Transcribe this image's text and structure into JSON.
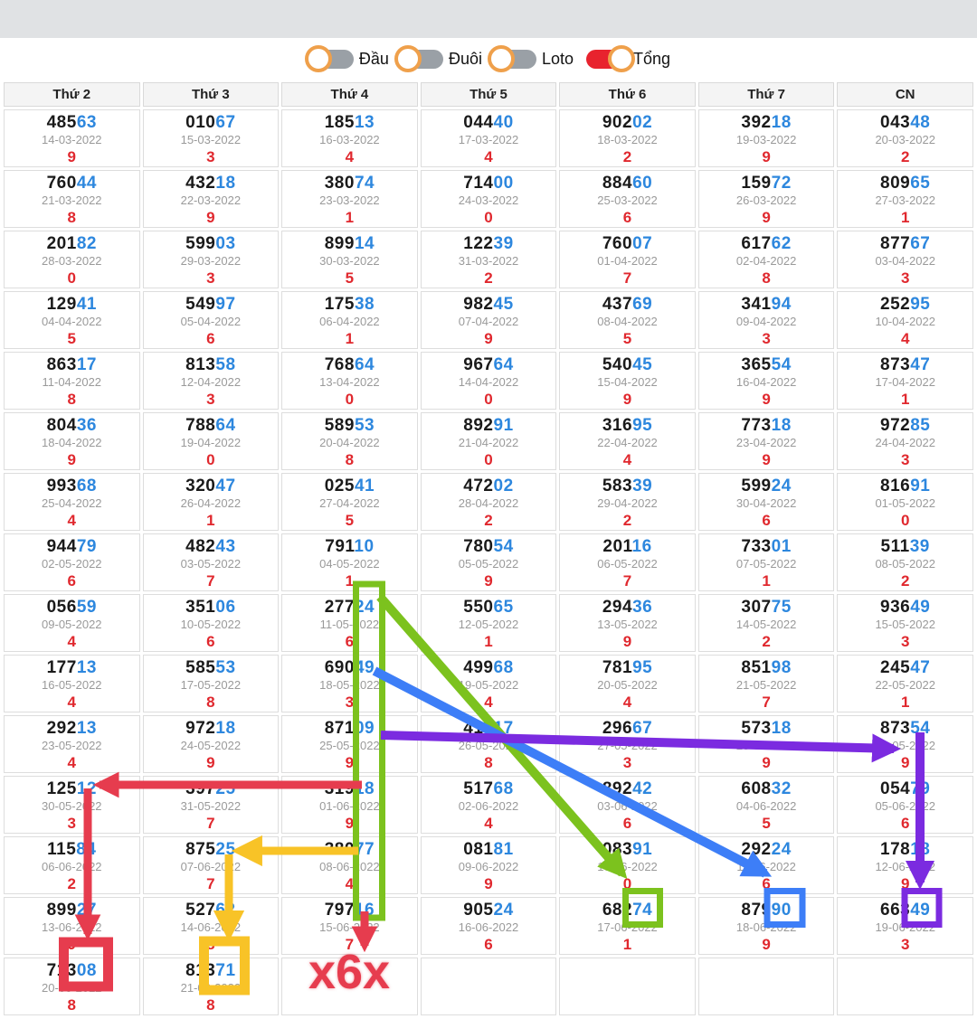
{
  "toggles": [
    {
      "label": "Đầu",
      "state": "off"
    },
    {
      "label": "Đuôi",
      "state": "off"
    },
    {
      "label": "Loto",
      "state": "off"
    },
    {
      "label": "Tổng",
      "state": "on"
    }
  ],
  "toggle_colors": {
    "track_off": "#9aa0a6",
    "track_on": "#e8232e",
    "knob_ring": "#efa04b"
  },
  "text_colors": {
    "number_head": "#1a1a1a",
    "number_tail": "#2d87de",
    "date": "#9a9a9a",
    "sum": "#e0282e"
  },
  "table": {
    "headers": [
      "Thứ 2",
      "Thứ 3",
      "Thứ 4",
      "Thứ 5",
      "Thứ 6",
      "Thứ 7",
      "CN"
    ],
    "rows": [
      [
        {
          "num": "48563",
          "date": "14-03-2022",
          "sum": "9"
        },
        {
          "num": "01067",
          "date": "15-03-2022",
          "sum": "3"
        },
        {
          "num": "18513",
          "date": "16-03-2022",
          "sum": "4"
        },
        {
          "num": "04440",
          "date": "17-03-2022",
          "sum": "4"
        },
        {
          "num": "90202",
          "date": "18-03-2022",
          "sum": "2"
        },
        {
          "num": "39218",
          "date": "19-03-2022",
          "sum": "9"
        },
        {
          "num": "04348",
          "date": "20-03-2022",
          "sum": "2"
        }
      ],
      [
        {
          "num": "76044",
          "date": "21-03-2022",
          "sum": "8"
        },
        {
          "num": "43218",
          "date": "22-03-2022",
          "sum": "9"
        },
        {
          "num": "38074",
          "date": "23-03-2022",
          "sum": "1"
        },
        {
          "num": "71400",
          "date": "24-03-2022",
          "sum": "0"
        },
        {
          "num": "88460",
          "date": "25-03-2022",
          "sum": "6"
        },
        {
          "num": "15972",
          "date": "26-03-2022",
          "sum": "9"
        },
        {
          "num": "80965",
          "date": "27-03-2022",
          "sum": "1"
        }
      ],
      [
        {
          "num": "20182",
          "date": "28-03-2022",
          "sum": "0"
        },
        {
          "num": "59903",
          "date": "29-03-2022",
          "sum": "3"
        },
        {
          "num": "89914",
          "date": "30-03-2022",
          "sum": "5"
        },
        {
          "num": "12239",
          "date": "31-03-2022",
          "sum": "2"
        },
        {
          "num": "76007",
          "date": "01-04-2022",
          "sum": "7"
        },
        {
          "num": "61762",
          "date": "02-04-2022",
          "sum": "8"
        },
        {
          "num": "87767",
          "date": "03-04-2022",
          "sum": "3"
        }
      ],
      [
        {
          "num": "12941",
          "date": "04-04-2022",
          "sum": "5"
        },
        {
          "num": "54997",
          "date": "05-04-2022",
          "sum": "6"
        },
        {
          "num": "17538",
          "date": "06-04-2022",
          "sum": "1"
        },
        {
          "num": "98245",
          "date": "07-04-2022",
          "sum": "9"
        },
        {
          "num": "43769",
          "date": "08-04-2022",
          "sum": "5"
        },
        {
          "num": "34194",
          "date": "09-04-2022",
          "sum": "3"
        },
        {
          "num": "25295",
          "date": "10-04-2022",
          "sum": "4"
        }
      ],
      [
        {
          "num": "86317",
          "date": "11-04-2022",
          "sum": "8"
        },
        {
          "num": "81358",
          "date": "12-04-2022",
          "sum": "3"
        },
        {
          "num": "76864",
          "date": "13-04-2022",
          "sum": "0"
        },
        {
          "num": "96764",
          "date": "14-04-2022",
          "sum": "0"
        },
        {
          "num": "54045",
          "date": "15-04-2022",
          "sum": "9"
        },
        {
          "num": "36554",
          "date": "16-04-2022",
          "sum": "9"
        },
        {
          "num": "87347",
          "date": "17-04-2022",
          "sum": "1"
        }
      ],
      [
        {
          "num": "80436",
          "date": "18-04-2022",
          "sum": "9"
        },
        {
          "num": "78864",
          "date": "19-04-2022",
          "sum": "0"
        },
        {
          "num": "58953",
          "date": "20-04-2022",
          "sum": "8"
        },
        {
          "num": "89291",
          "date": "21-04-2022",
          "sum": "0"
        },
        {
          "num": "31695",
          "date": "22-04-2022",
          "sum": "4"
        },
        {
          "num": "77318",
          "date": "23-04-2022",
          "sum": "9"
        },
        {
          "num": "97285",
          "date": "24-04-2022",
          "sum": "3"
        }
      ],
      [
        {
          "num": "99368",
          "date": "25-04-2022",
          "sum": "4"
        },
        {
          "num": "32047",
          "date": "26-04-2022",
          "sum": "1"
        },
        {
          "num": "02541",
          "date": "27-04-2022",
          "sum": "5"
        },
        {
          "num": "47202",
          "date": "28-04-2022",
          "sum": "2"
        },
        {
          "num": "58339",
          "date": "29-04-2022",
          "sum": "2"
        },
        {
          "num": "59924",
          "date": "30-04-2022",
          "sum": "6"
        },
        {
          "num": "81691",
          "date": "01-05-2022",
          "sum": "0"
        }
      ],
      [
        {
          "num": "94479",
          "date": "02-05-2022",
          "sum": "6"
        },
        {
          "num": "48243",
          "date": "03-05-2022",
          "sum": "7"
        },
        {
          "num": "79110",
          "date": "04-05-2022",
          "sum": "1"
        },
        {
          "num": "78054",
          "date": "05-05-2022",
          "sum": "9"
        },
        {
          "num": "20116",
          "date": "06-05-2022",
          "sum": "7"
        },
        {
          "num": "73301",
          "date": "07-05-2022",
          "sum": "1"
        },
        {
          "num": "51139",
          "date": "08-05-2022",
          "sum": "2"
        }
      ],
      [
        {
          "num": "05659",
          "date": "09-05-2022",
          "sum": "4"
        },
        {
          "num": "35106",
          "date": "10-05-2022",
          "sum": "6"
        },
        {
          "num": "27724",
          "date": "11-05-2022",
          "sum": "6"
        },
        {
          "num": "55065",
          "date": "12-05-2022",
          "sum": "1"
        },
        {
          "num": "29436",
          "date": "13-05-2022",
          "sum": "9"
        },
        {
          "num": "30775",
          "date": "14-05-2022",
          "sum": "2"
        },
        {
          "num": "93649",
          "date": "15-05-2022",
          "sum": "3"
        }
      ],
      [
        {
          "num": "17713",
          "date": "16-05-2022",
          "sum": "4"
        },
        {
          "num": "58553",
          "date": "17-05-2022",
          "sum": "8"
        },
        {
          "num": "69049",
          "date": "18-05-2022",
          "sum": "3"
        },
        {
          "num": "49968",
          "date": "19-05-2022",
          "sum": "4"
        },
        {
          "num": "78195",
          "date": "20-05-2022",
          "sum": "4"
        },
        {
          "num": "85198",
          "date": "21-05-2022",
          "sum": "7"
        },
        {
          "num": "24547",
          "date": "22-05-2022",
          "sum": "1"
        }
      ],
      [
        {
          "num": "29213",
          "date": "23-05-2022",
          "sum": "4"
        },
        {
          "num": "97218",
          "date": "24-05-2022",
          "sum": "9"
        },
        {
          "num": "87109",
          "date": "25-05-2022",
          "sum": "9"
        },
        {
          "num": "41717",
          "date": "26-05-2022",
          "sum": "8"
        },
        {
          "num": "29667",
          "date": "27-05-2022",
          "sum": "3"
        },
        {
          "num": "57318",
          "date": "28-05-2022",
          "sum": "9"
        },
        {
          "num": "87354",
          "date": "29-05-2022",
          "sum": "9"
        }
      ],
      [
        {
          "num": "12512",
          "date": "30-05-2022",
          "sum": "3"
        },
        {
          "num": "39725",
          "date": "31-05-2022",
          "sum": "7"
        },
        {
          "num": "31918",
          "date": "01-06-2022",
          "sum": "9"
        },
        {
          "num": "51768",
          "date": "02-06-2022",
          "sum": "4"
        },
        {
          "num": "89242",
          "date": "03-06-2022",
          "sum": "6"
        },
        {
          "num": "60832",
          "date": "04-06-2022",
          "sum": "5"
        },
        {
          "num": "05479",
          "date": "05-06-2022",
          "sum": "6"
        }
      ],
      [
        {
          "num": "11584",
          "date": "06-06-2022",
          "sum": "2"
        },
        {
          "num": "87525",
          "date": "07-06-2022",
          "sum": "7"
        },
        {
          "num": "38077",
          "date": "08-06-2022",
          "sum": "4"
        },
        {
          "num": "08181",
          "date": "09-06-2022",
          "sum": "9"
        },
        {
          "num": "08391",
          "date": "10-06-2022",
          "sum": "0"
        },
        {
          "num": "29224",
          "date": "11-06-2022",
          "sum": "6"
        },
        {
          "num": "17818",
          "date": "12-06-2022",
          "sum": "9"
        }
      ],
      [
        {
          "num": "89927",
          "date": "13-06-2022",
          "sum": "9"
        },
        {
          "num": "52762",
          "date": "14-06-2022",
          "sum": "8"
        },
        {
          "num": "79716",
          "date": "15-06-2022",
          "sum": "7"
        },
        {
          "num": "90524",
          "date": "16-06-2022",
          "sum": "6"
        },
        {
          "num": "68274",
          "date": "17-06-2022",
          "sum": "1"
        },
        {
          "num": "87990",
          "date": "18-06-2022",
          "sum": "9"
        },
        {
          "num": "66349",
          "date": "19-06-2022",
          "sum": "3"
        }
      ],
      [
        {
          "num": "71308",
          "date": "20-06-2022",
          "sum": "8"
        },
        {
          "num": "81371",
          "date": "21-06-2022",
          "sum": "8"
        },
        null,
        null,
        null,
        null,
        null
      ]
    ]
  },
  "annotations": {
    "x6x_label": "x6x",
    "colors": {
      "crimson": "#e63c4e",
      "green": "#7cc21e",
      "blue": "#3d7ef7",
      "purple": "#7b2be0",
      "yellow": "#f8c327"
    },
    "highlights": [
      {
        "color": "green",
        "type": "tall-rect",
        "target": "last two digits of Thứ 4 column, 11-05-2022 → 15-06-2022"
      },
      {
        "color": "green",
        "type": "box",
        "target": "74 of 68274 (17-06-2022)"
      },
      {
        "color": "blue",
        "type": "box",
        "target": "90 of 87990 (18-06-2022)"
      },
      {
        "color": "purple",
        "type": "box",
        "target": "49 of 66349 (19-06-2022)"
      },
      {
        "color": "crimson",
        "type": "box",
        "target": "308 of 71308 (20-06-2022)"
      },
      {
        "color": "yellow",
        "type": "box",
        "target": "371 of 81371 (21-06-2022)"
      }
    ]
  }
}
